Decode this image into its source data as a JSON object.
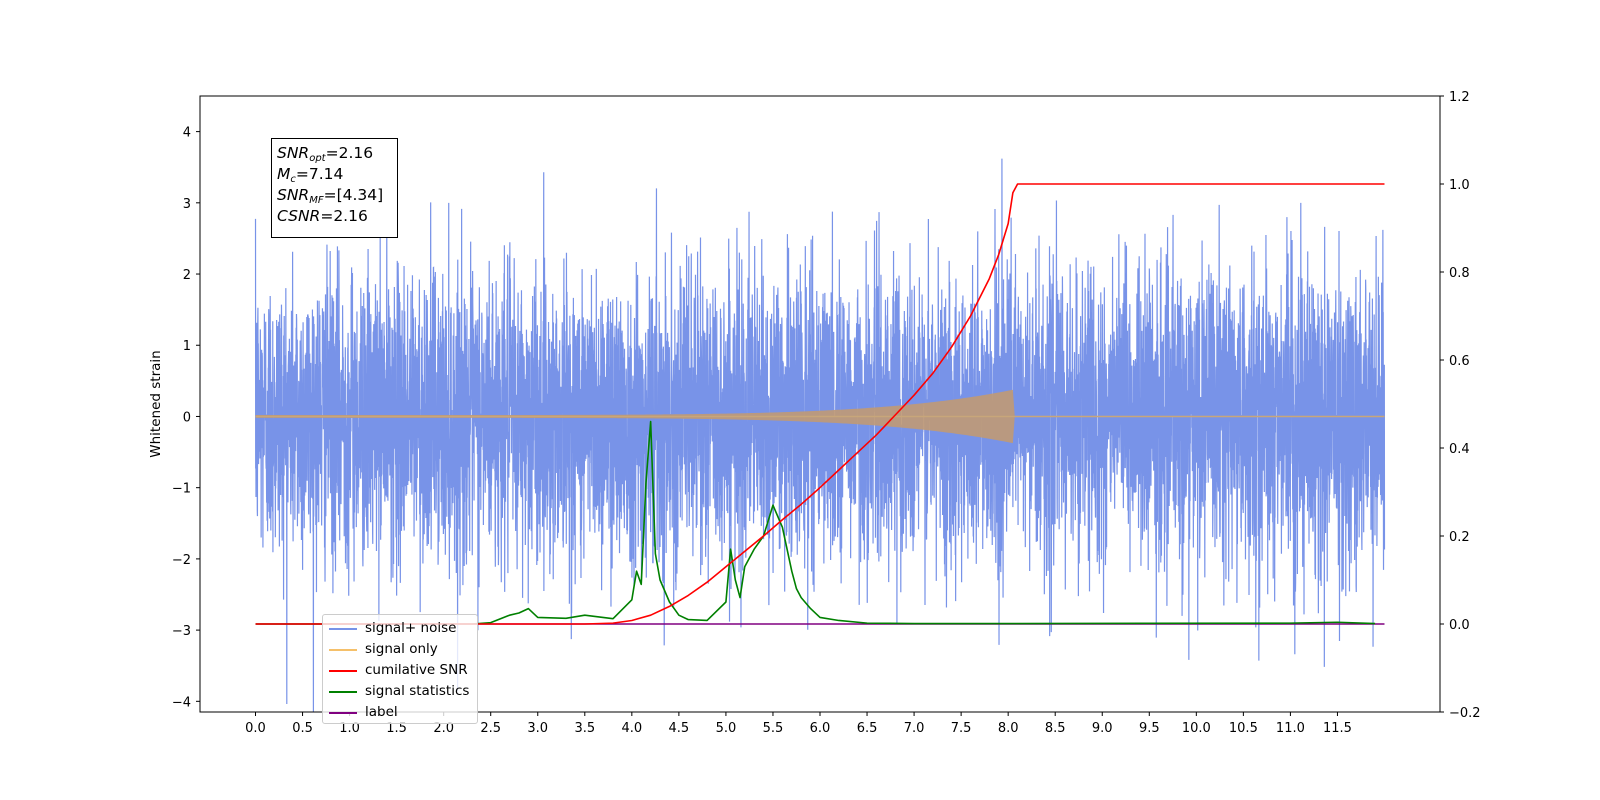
{
  "chart_data": {
    "type": "line",
    "ylabel": "Whitened strain",
    "xlabel": "",
    "xlim": [
      -0.59,
      12.59
    ],
    "ylim": [
      -4.15,
      4.5
    ],
    "ylim_right": [
      -0.2,
      1.2
    ],
    "x_ticks": [
      "0.0",
      "0.5",
      "1.0",
      "1.5",
      "2.0",
      "2.5",
      "3.0",
      "3.5",
      "4.0",
      "4.5",
      "5.0",
      "5.5",
      "6.0",
      "6.5",
      "7.0",
      "7.5",
      "8.0",
      "8.5",
      "9.0",
      "9.5",
      "10.0",
      "10.5",
      "11.0",
      "11.5"
    ],
    "y_ticks": [
      "4",
      "3",
      "2",
      "1",
      "0",
      "−1",
      "−2",
      "−3",
      "−4"
    ],
    "y_ticks_right": [
      "1.2",
      "1.0",
      "0.8",
      "0.6",
      "0.4",
      "0.2",
      "0.0",
      "−0.2"
    ],
    "grid": false,
    "legend_position": "lower-left",
    "annotation": {
      "snr_opt": {
        "label": "SNR",
        "sub": "opt",
        "value": "=2.16"
      },
      "mc": {
        "label": "M",
        "sub": "c",
        "value": "=7.14"
      },
      "snr_mf": {
        "label": "SNR",
        "sub": "MF",
        "value": "=[4.34]"
      },
      "csnr": {
        "label": "CSNR",
        "value": "=2.16"
      }
    },
    "series": [
      {
        "name": "signal+ noise",
        "color": "#7893e8",
        "axis": "left",
        "kind": "noise",
        "x_range": [
          0,
          12.0
        ],
        "std": 1.0
      },
      {
        "name": "signal only",
        "color": "#f5c06a",
        "axis": "left",
        "kind": "chirp",
        "x_range": [
          0,
          12.0
        ],
        "merger": 8.07,
        "peak_amplitude": 0.38
      },
      {
        "name": "cumilative SNR",
        "color": "#ff0000",
        "axis": "right",
        "x": [
          0,
          3.5,
          3.8,
          4.0,
          4.2,
          4.4,
          4.6,
          4.8,
          5.0,
          5.2,
          5.4,
          5.6,
          5.8,
          6.0,
          6.2,
          6.4,
          6.6,
          6.8,
          7.0,
          7.2,
          7.4,
          7.6,
          7.8,
          7.9,
          8.0,
          8.05,
          8.1,
          12.0
        ],
        "y": [
          0,
          0,
          0.002,
          0.008,
          0.02,
          0.04,
          0.065,
          0.095,
          0.13,
          0.165,
          0.2,
          0.237,
          0.272,
          0.31,
          0.35,
          0.39,
          0.43,
          0.475,
          0.52,
          0.57,
          0.63,
          0.7,
          0.785,
          0.84,
          0.91,
          0.98,
          1.0,
          1.0
        ]
      },
      {
        "name": "signal statistics",
        "color": "#008000",
        "axis": "right",
        "x": [
          0,
          2.3,
          2.5,
          2.7,
          2.8,
          2.9,
          3.0,
          3.3,
          3.5,
          3.8,
          4.0,
          4.05,
          4.1,
          4.15,
          4.2,
          4.25,
          4.3,
          4.4,
          4.5,
          4.6,
          4.8,
          5.0,
          5.05,
          5.1,
          5.15,
          5.2,
          5.3,
          5.4,
          5.5,
          5.6,
          5.7,
          5.75,
          5.8,
          5.9,
          6.0,
          6.2,
          6.5,
          7.0,
          8.0,
          11.0,
          11.5,
          11.9
        ],
        "y": [
          0,
          0,
          0.003,
          0.02,
          0.025,
          0.035,
          0.015,
          0.013,
          0.02,
          0.012,
          0.055,
          0.12,
          0.09,
          0.32,
          0.46,
          0.16,
          0.1,
          0.05,
          0.02,
          0.01,
          0.008,
          0.05,
          0.17,
          0.1,
          0.06,
          0.13,
          0.17,
          0.2,
          0.27,
          0.22,
          0.12,
          0.08,
          0.06,
          0.035,
          0.015,
          0.008,
          0.002,
          0.001,
          0.001,
          0.002,
          0.004,
          0.001
        ]
      },
      {
        "name": "label",
        "color": "#800080",
        "axis": "right",
        "x": [
          0,
          12.0
        ],
        "y": [
          0,
          0
        ]
      },
      {
        "name": "cumilative SNR",
        "color": "#000000",
        "axis": "right",
        "hidden_behind": true
      }
    ]
  },
  "legend": [
    {
      "label": "signal+ noise",
      "color": "#7893e8"
    },
    {
      "label": "signal only",
      "color": "#f5c06a"
    },
    {
      "label": "cumilative SNR",
      "color": "#ff0000"
    },
    {
      "label": "signal statistics",
      "color": "#008000"
    },
    {
      "label": "label",
      "color": "#800080"
    }
  ]
}
